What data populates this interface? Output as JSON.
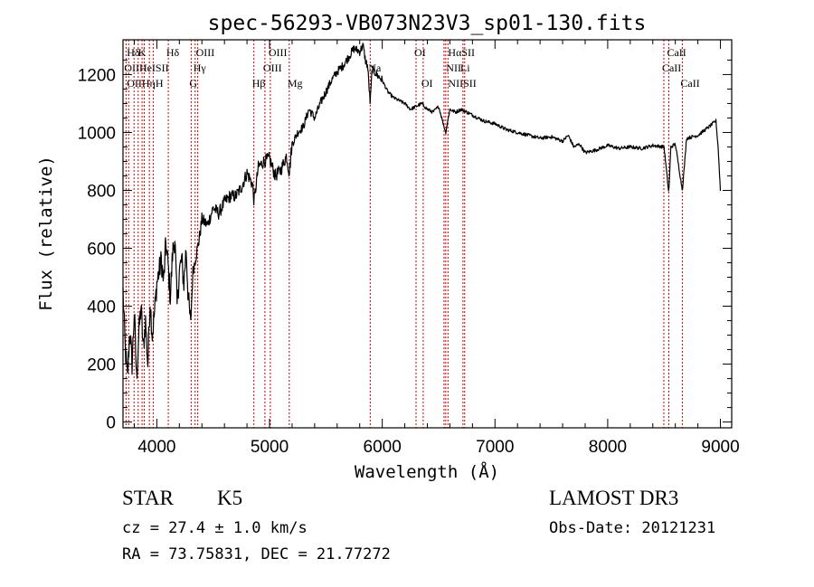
{
  "chart_data": {
    "type": "line",
    "title": "spec-56293-VB073N23V3_sp01-130.fits",
    "xlabel": "Wavelength (Å)",
    "ylabel": "Flux (relative)",
    "xlim": [
      3700,
      9100
    ],
    "ylim": [
      -20,
      1320
    ],
    "xticks": [
      4000,
      5000,
      6000,
      7000,
      8000,
      9000
    ],
    "yticks": [
      0,
      200,
      400,
      600,
      800,
      1000,
      1200
    ],
    "grid": false,
    "line_color": "#000000",
    "marker_color": "#cc0000",
    "spectrum": {
      "name": "flux",
      "x": [
        3700,
        3720,
        3740,
        3760,
        3780,
        3800,
        3820,
        3840,
        3860,
        3880,
        3900,
        3920,
        3940,
        3960,
        3980,
        4000,
        4020,
        4040,
        4060,
        4080,
        4100,
        4120,
        4140,
        4160,
        4180,
        4200,
        4220,
        4240,
        4260,
        4280,
        4300,
        4320,
        4340,
        4360,
        4380,
        4400,
        4450,
        4500,
        4550,
        4600,
        4650,
        4700,
        4750,
        4800,
        4850,
        4862,
        4900,
        4950,
        5000,
        5050,
        5100,
        5150,
        5175,
        5200,
        5250,
        5300,
        5350,
        5400,
        5450,
        5500,
        5550,
        5600,
        5650,
        5700,
        5750,
        5800,
        5830,
        5850,
        5870,
        5893,
        5910,
        5950,
        6000,
        6050,
        6100,
        6150,
        6200,
        6250,
        6300,
        6350,
        6400,
        6450,
        6500,
        6563,
        6600,
        6650,
        6700,
        6750,
        6800,
        6900,
        7000,
        7100,
        7200,
        7300,
        7400,
        7500,
        7600,
        7650,
        7700,
        7750,
        7800,
        7900,
        8000,
        8100,
        8200,
        8300,
        8400,
        8500,
        8542,
        8560,
        8600,
        8662,
        8700,
        8800,
        8900,
        8960,
        8980,
        9000
      ],
      "y": [
        450,
        250,
        150,
        320,
        200,
        380,
        150,
        300,
        400,
        250,
        350,
        200,
        420,
        300,
        380,
        480,
        520,
        560,
        480,
        620,
        540,
        430,
        580,
        640,
        400,
        520,
        560,
        480,
        600,
        420,
        340,
        520,
        560,
        600,
        640,
        700,
        680,
        740,
        720,
        760,
        780,
        780,
        810,
        860,
        820,
        760,
        880,
        900,
        910,
        850,
        870,
        920,
        860,
        960,
        1000,
        1020,
        1080,
        1050,
        1100,
        1140,
        1180,
        1210,
        1230,
        1260,
        1290,
        1280,
        1300,
        1250,
        1230,
        1100,
        1220,
        1200,
        1180,
        1140,
        1120,
        1110,
        1100,
        1080,
        1090,
        1100,
        1080,
        1070,
        1090,
        1000,
        1080,
        1070,
        1080,
        1070,
        1060,
        1040,
        1030,
        1010,
        1000,
        990,
        980,
        985,
        970,
        990,
        950,
        960,
        930,
        940,
        955,
        945,
        950,
        945,
        955,
        950,
        790,
        950,
        960,
        800,
        980,
        990,
        1020,
        1040,
        950,
        800
      ]
    },
    "lines": [
      {
        "label": "Hδ",
        "x": 3750,
        "row": 1
      },
      {
        "label": "K",
        "x": 3850,
        "row": 1
      },
      {
        "label": "Hδ",
        "x": 4100,
        "row": 1
      },
      {
        "label": "OIII",
        "x": 4363,
        "row": 1
      },
      {
        "label": "OIII",
        "x": 5007,
        "row": 1
      },
      {
        "label": "OI",
        "x": 6300,
        "row": 1
      },
      {
        "label": "HαSII",
        "x": 6600,
        "row": 1
      },
      {
        "label": "CaII",
        "x": 8542,
        "row": 1
      },
      {
        "label": "OII",
        "x": 3727,
        "row": 2
      },
      {
        "label": "HeISII",
        "x": 3860,
        "row": 2
      },
      {
        "label": "Hγ",
        "x": 4340,
        "row": 2
      },
      {
        "label": "OIII",
        "x": 4959,
        "row": 2
      },
      {
        "label": "Na",
        "x": 5893,
        "row": 2
      },
      {
        "label": "NII",
        "x": 6583,
        "row": 2
      },
      {
        "label": "Li",
        "x": 6708,
        "row": 2
      },
      {
        "label": "CaII",
        "x": 8498,
        "row": 2
      },
      {
        "label": "OIIHηH",
        "x": 3750,
        "row": 3
      },
      {
        "label": "G",
        "x": 4305,
        "row": 3
      },
      {
        "label": "Hβ",
        "x": 4861,
        "row": 3
      },
      {
        "label": "Mg",
        "x": 5175,
        "row": 3
      },
      {
        "label": "OI",
        "x": 6363,
        "row": 3
      },
      {
        "label": "NIISII",
        "x": 6600,
        "row": 3
      },
      {
        "label": "CaII",
        "x": 8662,
        "row": 3
      }
    ],
    "marker_x": [
      3727,
      3750,
      3798,
      3835,
      3869,
      3889,
      3934,
      3968,
      4102,
      4305,
      4340,
      4363,
      4861,
      4959,
      5007,
      5175,
      5893,
      6300,
      6363,
      6548,
      6563,
      6583,
      6716,
      6731,
      8498,
      8542,
      8662
    ]
  },
  "info": {
    "object_class": "STAR",
    "subclass": "K5",
    "survey": "LAMOST DR3",
    "redshift": "cz = 27.4 ± 1.0 km/s",
    "obs_date": "Obs-Date: 20121231",
    "coords": "RA =  73.75831, DEC =  21.77272"
  }
}
